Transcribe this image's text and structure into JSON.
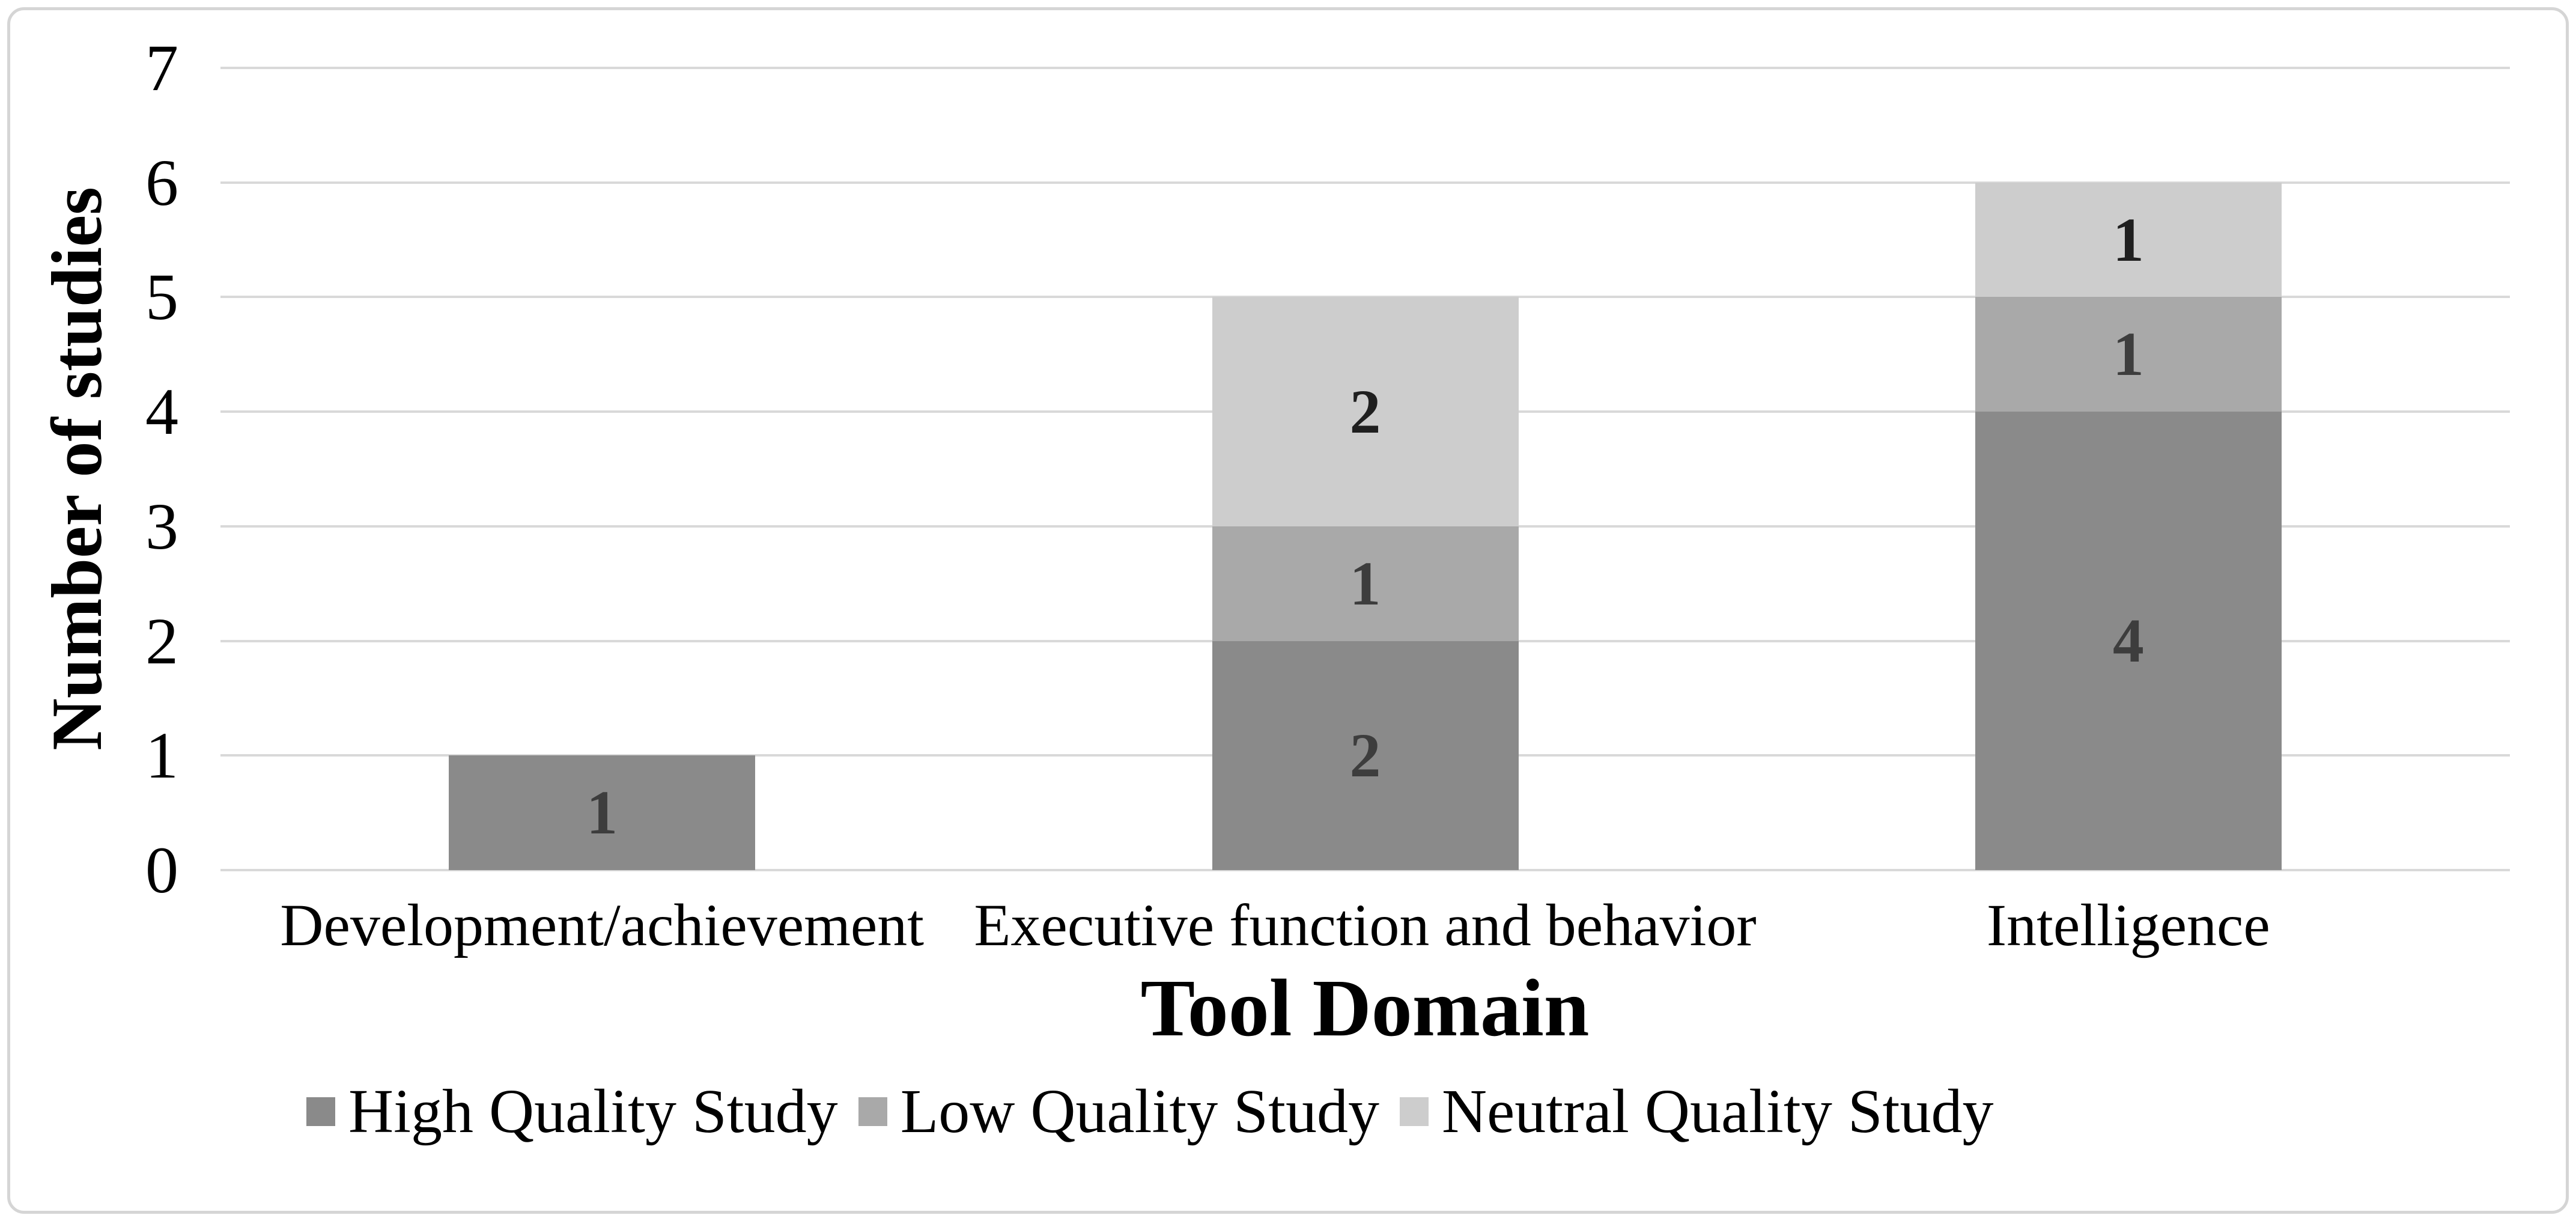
{
  "chart_data": {
    "type": "bar",
    "subtype": "stacked-vertical",
    "title": "",
    "xlabel": "Tool Domain",
    "ylabel": "Number of studies",
    "categories": [
      "Development/achievement",
      "Executive function and behavior",
      "Intelligence"
    ],
    "series": [
      {
        "name": "High Quality Study",
        "color": "#8a8a8a",
        "label_color": "#3d3d3d",
        "values": [
          1,
          2,
          4
        ]
      },
      {
        "name": "Low Quality Study",
        "color": "#a9a9a9",
        "label_color": "#3d3d3d",
        "values": [
          0,
          1,
          1
        ]
      },
      {
        "name": "Neutral Quality Study",
        "color": "#cdcdcd",
        "label_color": "#1f1f1f",
        "values": [
          0,
          2,
          1
        ]
      }
    ],
    "stack_totals": [
      1,
      5,
      6
    ],
    "y_ticks": [
      0,
      1,
      2,
      3,
      4,
      5,
      6,
      7
    ],
    "ylim": [
      0,
      7
    ],
    "grid": true,
    "gridline_color": "#d9d9d9",
    "legend_position": "bottom",
    "frame_border_color": "#d5d5d5"
  }
}
